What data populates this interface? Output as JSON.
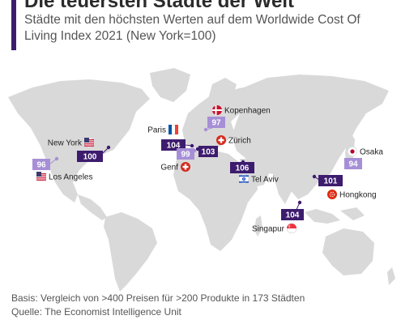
{
  "header": {
    "title": "Die teuersten Städte der Welt",
    "subtitle": "Städte mit den höchsten Werten auf dem Worldwide Cost Of Living Index 2021 (New York=100)"
  },
  "colors": {
    "land": "#d9d9d9",
    "dark_badge": "#3d1c6e",
    "light_badge": "#a68fd6",
    "dot": "#4a2a86"
  },
  "cities": [
    {
      "name": "New York",
      "value": 100,
      "style": "dark",
      "flag": "flag-usa"
    },
    {
      "name": "Los Angeles",
      "value": 96,
      "style": "light",
      "flag": "flag-usa"
    },
    {
      "name": "Paris",
      "value": 104,
      "style": "dark",
      "flag": "flag-france"
    },
    {
      "name": "Kopenhagen",
      "value": 97,
      "style": "light",
      "flag": "flag-denmark"
    },
    {
      "name": "Zürich",
      "value": 103,
      "style": "dark",
      "flag": "flag-switzerland"
    },
    {
      "name": "Genf",
      "value": 99,
      "style": "light",
      "flag": "flag-switzerland"
    },
    {
      "name": "Tel Aviv",
      "value": 106,
      "style": "dark",
      "flag": "flag-israel"
    },
    {
      "name": "Osaka",
      "value": 94,
      "style": "light",
      "flag": "flag-japan"
    },
    {
      "name": "Hongkong",
      "value": 101,
      "style": "dark",
      "flag": "flag-hongkong"
    },
    {
      "name": "Singapur",
      "value": 104,
      "style": "dark",
      "flag": "flag-singapore"
    }
  ],
  "footer": {
    "basis": "Basis: Vergleich von >400 Preisen für >200 Produkte in 173 Städten",
    "source": "Quelle: The Economist Intelligence Unit"
  }
}
